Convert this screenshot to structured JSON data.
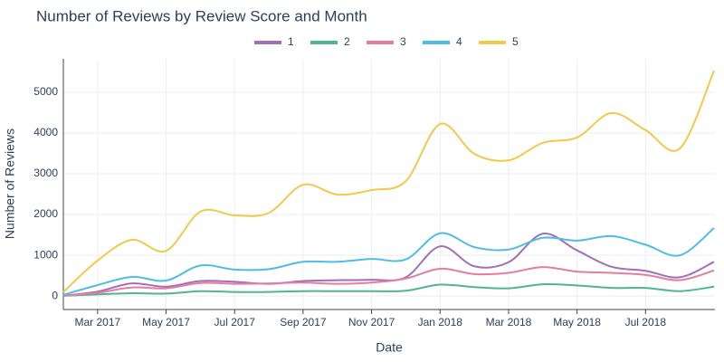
{
  "chart_data": {
    "type": "line",
    "title": "Number of Reviews by Review Score and Month",
    "x_label": "Date",
    "y_label": "Number of Reviews",
    "x": [
      "2017-02",
      "2017-03",
      "2017-04",
      "2017-05",
      "2017-06",
      "2017-07",
      "2017-08",
      "2017-09",
      "2017-10",
      "2017-11",
      "2017-12",
      "2018-01",
      "2018-02",
      "2018-03",
      "2018-04",
      "2018-05",
      "2018-06",
      "2018-07",
      "2018-08",
      "2018-09"
    ],
    "xticks": [
      {
        "value": "2017-03",
        "label": "Mar 2017"
      },
      {
        "value": "2017-05",
        "label": "May 2017"
      },
      {
        "value": "2017-07",
        "label": "Jul 2017"
      },
      {
        "value": "2017-09",
        "label": "Sep 2017"
      },
      {
        "value": "2017-11",
        "label": "Nov 2017"
      },
      {
        "value": "2018-01",
        "label": "Jan 2018"
      },
      {
        "value": "2018-03",
        "label": "Mar 2018"
      },
      {
        "value": "2018-05",
        "label": "May 2018"
      },
      {
        "value": "2018-07",
        "label": "Jul 2018"
      }
    ],
    "ylim": [
      -330,
      5820
    ],
    "yticks": [
      0,
      1000,
      2000,
      3000,
      4000,
      5000
    ],
    "grid": true,
    "legend": "top",
    "series": [
      {
        "name": "1",
        "color": "#a26fb6",
        "values": [
          10,
          110,
          310,
          230,
          370,
          350,
          300,
          370,
          390,
          400,
          460,
          1220,
          730,
          830,
          1530,
          1120,
          720,
          620,
          460,
          840
        ]
      },
      {
        "name": "2",
        "color": "#4fb593",
        "values": [
          5,
          40,
          70,
          60,
          120,
          100,
          100,
          120,
          120,
          120,
          130,
          280,
          220,
          190,
          290,
          260,
          200,
          200,
          120,
          230
        ]
      },
      {
        "name": "3",
        "color": "#e77ca2",
        "values": [
          10,
          80,
          210,
          190,
          320,
          300,
          310,
          330,
          300,
          330,
          430,
          670,
          540,
          570,
          710,
          600,
          570,
          520,
          390,
          630
        ]
      },
      {
        "name": "4",
        "color": "#4dbde6",
        "values": [
          30,
          270,
          470,
          380,
          750,
          650,
          660,
          840,
          840,
          910,
          900,
          1540,
          1200,
          1140,
          1430,
          1360,
          1470,
          1260,
          1000,
          1670
        ]
      },
      {
        "name": "5",
        "color": "#f1c94b",
        "values": [
          100,
          870,
          1380,
          1110,
          2070,
          1980,
          2040,
          2730,
          2490,
          2600,
          2820,
          4220,
          3490,
          3330,
          3760,
          3890,
          4490,
          4070,
          3620,
          5530
        ]
      }
    ]
  }
}
